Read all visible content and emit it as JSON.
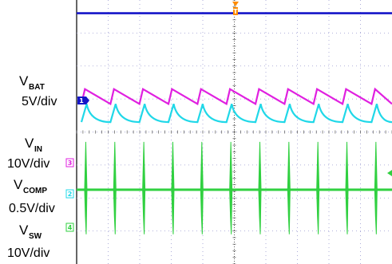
{
  "chart_data": {
    "type": "line",
    "title": "",
    "grid": true,
    "channels": [
      {
        "label_main": "V",
        "label_sub": "BAT",
        "scale": "5V/div",
        "channel": "1",
        "color": "#1515c8"
      },
      {
        "label_main": "V",
        "label_sub": "IN",
        "scale": "10V/div",
        "channel": "3",
        "color": "#e020e0"
      },
      {
        "label_main": "V",
        "label_sub": "COMP",
        "scale": "0.5V/div",
        "channel": "2",
        "color": "#20d8e8"
      },
      {
        "label_main": "V",
        "label_sub": "SW",
        "scale": "10V/div",
        "channel": "4",
        "color": "#30d040"
      }
    ],
    "series": [
      {
        "channel": "1",
        "color": "#1515c8",
        "shape": "flat",
        "level_div": 7.6
      },
      {
        "channel": "3",
        "color": "#e020e0",
        "shape": "sawtooth",
        "high_div": 5.3,
        "low_div": 4.85,
        "period_div": 0.92
      },
      {
        "channel": "2",
        "color": "#20d8e8",
        "shape": "cusp",
        "high_div": 4.85,
        "low_div": 4.3,
        "period_div": 0.92
      },
      {
        "channel": "4",
        "color": "#30d040",
        "shape": "spikes",
        "baseline_div": 2.25,
        "spike_up_div": 1.45,
        "spike_down_div": 1.35,
        "period_div": 0.92
      }
    ],
    "xdiv": 10,
    "ydiv": 8
  }
}
